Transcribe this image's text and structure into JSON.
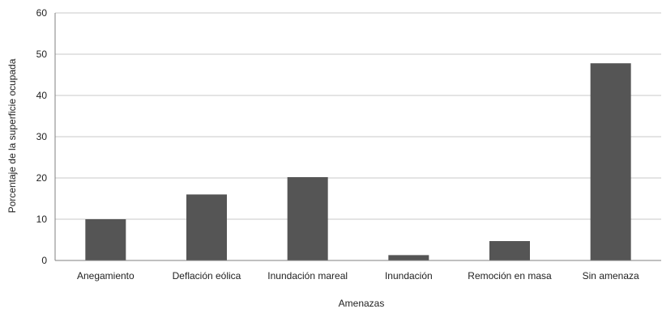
{
  "chart_data": {
    "type": "bar",
    "title": "",
    "xlabel": "Amenazas",
    "ylabel": "Porcentaje de la superficie ocupada",
    "ylim": [
      0,
      60
    ],
    "yticks": [
      0,
      10,
      20,
      30,
      40,
      50,
      60
    ],
    "grid": true,
    "legend": "none",
    "bar_color": "#555555",
    "categories": [
      "Anegamiento",
      "Deflación eólica",
      "Inundación mareal",
      "Inundación",
      "Remoción en masa",
      "Sin amenaza"
    ],
    "values": [
      10,
      16,
      20.2,
      1.3,
      4.7,
      47.8
    ]
  }
}
